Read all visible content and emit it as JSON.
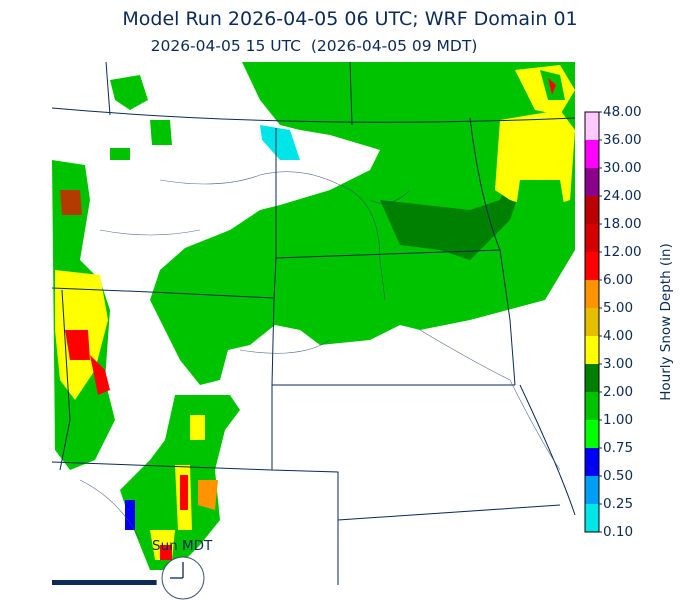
{
  "title": "Model Run 2026-04-05 06 UTC; WRF Domain 01",
  "subtitle": "2026-04-05 15 UTC  (2026-04-05 09 MDT)",
  "colorbar": {
    "label": "Hourly Snow Depth (in)",
    "ticks": [
      "0.10",
      "0.25",
      "0.50",
      "0.75",
      "1.00",
      "2.00",
      "3.00",
      "4.00",
      "5.00",
      "6.00",
      "12.00",
      "18.00",
      "24.00",
      "30.00",
      "36.00",
      "48.00"
    ],
    "colors": [
      "#00e5e8",
      "#009ff5",
      "#0000f5",
      "#00ff00",
      "#00c300",
      "#008000",
      "#ffff00",
      "#e5be00",
      "#ff9300",
      "#ff0000",
      "#d40000",
      "#bc0000",
      "#8b008b",
      "#ff00ff",
      "#ffc8ff"
    ]
  },
  "clock": {
    "label": "Sun MDT"
  },
  "animation": {
    "progress": 0.2
  }
}
